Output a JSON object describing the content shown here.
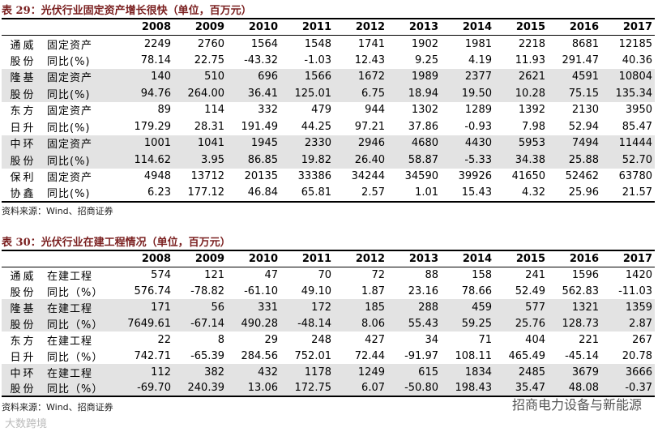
{
  "tables": [
    {
      "title": "表 29：光伏行业固定资产增长很快（单位，百万元）",
      "header": [
        "2008",
        "2009",
        "2010",
        "2011",
        "2012",
        "2013",
        "2014",
        "2015",
        "2016",
        "2017"
      ],
      "rows": [
        [
          "通威",
          "固定资产",
          "2249",
          "2760",
          "1564",
          "1548",
          "1741",
          "1902",
          "1981",
          "2218",
          "8681",
          "12185"
        ],
        [
          "股份",
          "同比(%)",
          "78.14",
          "22.75",
          "-43.32",
          "-1.03",
          "12.43",
          "9.25",
          "4.19",
          "11.93",
          "291.47",
          "40.36"
        ],
        [
          "隆基",
          "固定资产",
          "140",
          "510",
          "696",
          "1566",
          "1672",
          "1989",
          "2377",
          "2621",
          "4591",
          "10804"
        ],
        [
          "股份",
          "同比(%)",
          "94.76",
          "264.00",
          "36.41",
          "125.01",
          "6.75",
          "18.94",
          "19.50",
          "10.28",
          "75.15",
          "135.34"
        ],
        [
          "东方",
          "固定资产",
          "89",
          "114",
          "332",
          "479",
          "944",
          "1302",
          "1289",
          "1392",
          "2130",
          "3950"
        ],
        [
          "日升",
          "同比(%)",
          "179.29",
          "28.31",
          "191.49",
          "44.25",
          "97.21",
          "37.86",
          "-0.93",
          "7.98",
          "52.94",
          "85.47"
        ],
        [
          "中环",
          "固定资产",
          "1001",
          "1041",
          "1945",
          "2330",
          "2946",
          "4680",
          "4430",
          "5953",
          "7494",
          "11444"
        ],
        [
          "股份",
          "同比(%)",
          "114.62",
          "3.95",
          "86.85",
          "19.82",
          "26.40",
          "58.87",
          "-5.33",
          "34.38",
          "25.88",
          "52.70"
        ],
        [
          "保利",
          "固定资产",
          "4948",
          "13712",
          "20135",
          "33386",
          "34244",
          "34590",
          "39926",
          "41650",
          "52462",
          "63780"
        ],
        [
          "协鑫",
          "同比(%)",
          "6.23",
          "177.12",
          "46.84",
          "65.81",
          "2.57",
          "1.01",
          "15.43",
          "4.32",
          "25.96",
          "21.57"
        ]
      ],
      "source": "资料来源：Wind、招商证券"
    },
    {
      "title": "表 30：光伏行业在建工程情况（单位，百万元）",
      "header": [
        "2008",
        "2009",
        "2010",
        "2011",
        "2012",
        "2013",
        "2014",
        "2015",
        "2016",
        "2017"
      ],
      "rows": [
        [
          "通威",
          "在建工程",
          "574",
          "121",
          "47",
          "70",
          "72",
          "88",
          "158",
          "241",
          "1596",
          "1420"
        ],
        [
          "股份",
          "同比（%）",
          "576.74",
          "-78.82",
          "-61.10",
          "49.10",
          "1.87",
          "23.16",
          "78.66",
          "52.49",
          "562.83",
          "-11.03"
        ],
        [
          "隆基",
          "在建工程",
          "171",
          "56",
          "331",
          "172",
          "185",
          "288",
          "459",
          "577",
          "1321",
          "1359"
        ],
        [
          "股份",
          "同比（%）",
          "7649.61",
          "-67.14",
          "490.28",
          "-48.14",
          "8.06",
          "55.43",
          "59.25",
          "25.76",
          "128.73",
          "2.87"
        ],
        [
          "东方",
          "在建工程",
          "22",
          "8",
          "29",
          "248",
          "427",
          "34",
          "71",
          "404",
          "221",
          "267"
        ],
        [
          "日升",
          "同比（%）",
          "742.71",
          "-65.39",
          "284.56",
          "752.01",
          "72.44",
          "-91.97",
          "108.11",
          "465.49",
          "-45.14",
          "20.78"
        ],
        [
          "中环",
          "在建工程",
          "112",
          "382",
          "432",
          "1178",
          "1249",
          "615",
          "1834",
          "2485",
          "3679",
          "3666"
        ],
        [
          "股份",
          "同比（%）",
          "-69.70",
          "240.39",
          "13.06",
          "172.75",
          "6.07",
          "-50.80",
          "198.43",
          "35.47",
          "48.08",
          "-0.37"
        ]
      ],
      "source": "资料来源：Wind、招商证券"
    }
  ],
  "watermark": "招商电力设备与新能源",
  "corner_mark": "大数跨境"
}
